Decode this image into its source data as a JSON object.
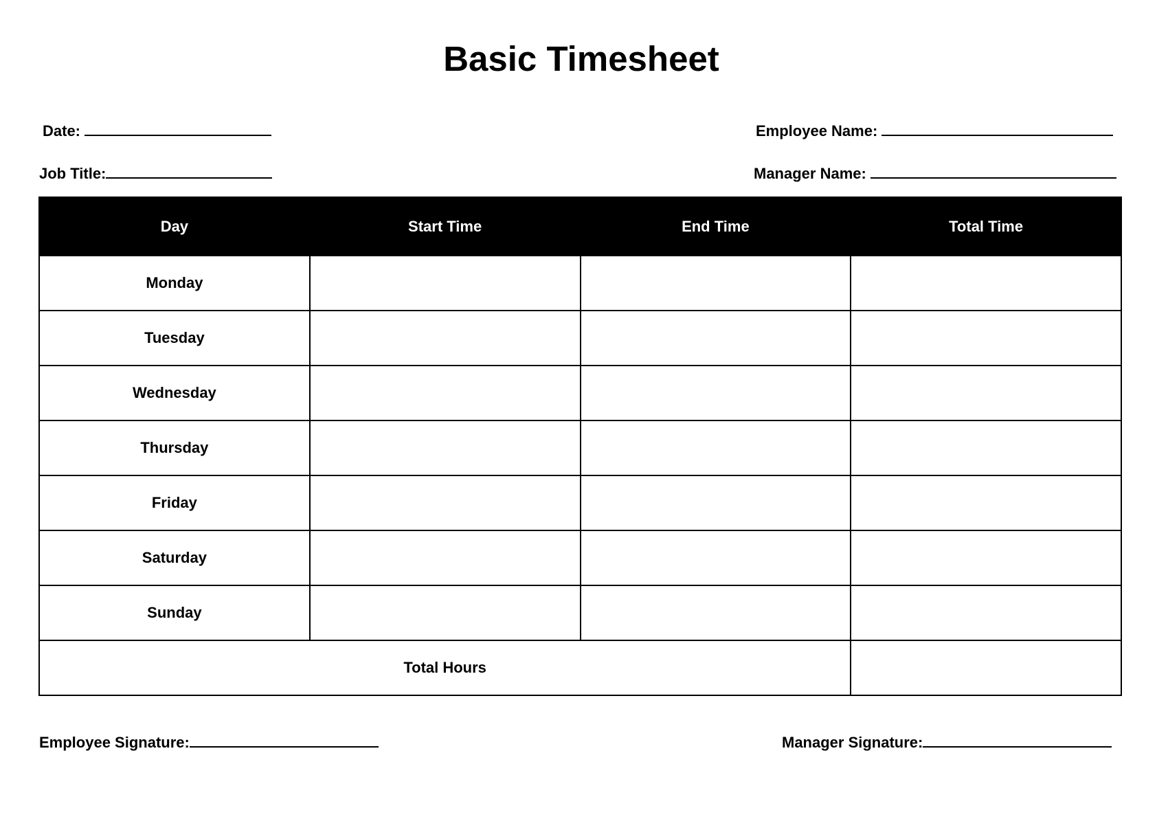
{
  "title": "Basic Timesheet",
  "fields": {
    "date": "Date:",
    "employee_name": "Employee Name:",
    "job_title": "Job Title:",
    "manager_name": "Manager Name:"
  },
  "table": {
    "headers": [
      "Day",
      "Start Time",
      "End Time",
      "Total Time"
    ],
    "days": [
      "Monday",
      "Tuesday",
      "Wednesday",
      "Thursday",
      "Friday",
      "Saturday",
      "Sunday"
    ],
    "total_label": "Total Hours"
  },
  "signatures": {
    "employee": "Employee Signature:",
    "manager": "Manager Signature:"
  }
}
